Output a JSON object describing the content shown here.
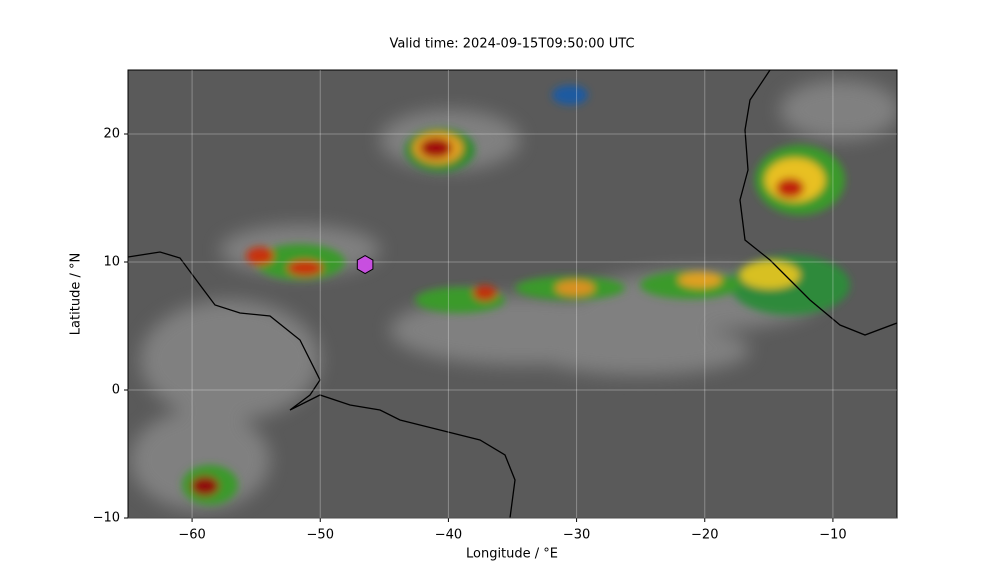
{
  "chart_data": {
    "type": "map",
    "title": "Valid time: 2024-09-15T09:50:00 UTC",
    "x_label": "Longitude / °E",
    "y_label": "Latitude / °N",
    "xlim": [
      -65,
      -5
    ],
    "ylim": [
      -10,
      25
    ],
    "xticks": [
      {
        "value": -60,
        "label": "−60"
      },
      {
        "value": -50,
        "label": "−50"
      },
      {
        "value": -40,
        "label": "−40"
      },
      {
        "value": -30,
        "label": "−30"
      },
      {
        "value": -20,
        "label": "−20"
      },
      {
        "value": -10,
        "label": "−10"
      }
    ],
    "yticks": [
      {
        "value": -10,
        "label": "−10"
      },
      0,
      10,
      20
    ],
    "grid": true,
    "points": {
      "x": [
        -46.5
      ],
      "y": [
        9.8
      ],
      "color": "#c84fe0"
    }
  }
}
